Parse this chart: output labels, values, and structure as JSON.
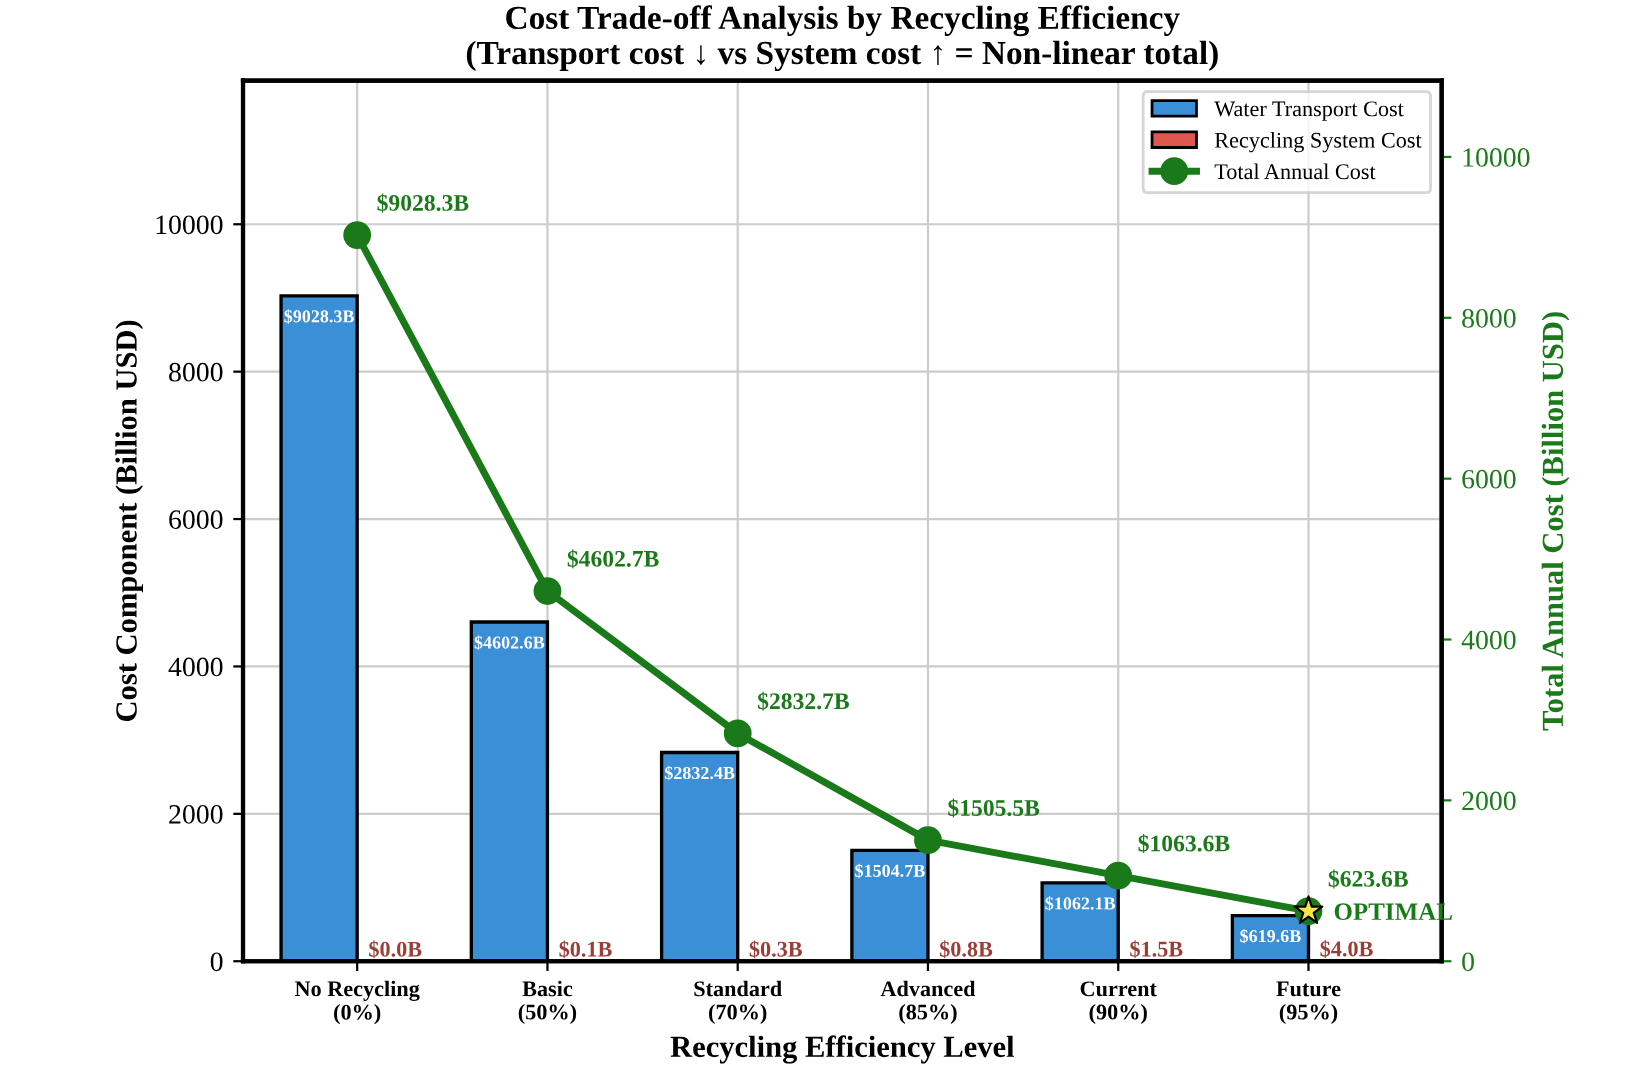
{
  "chart_data": {
    "type": "bar",
    "title": "Cost Trade-off Analysis by Recycling Efficiency\n(Transport cost ↓ vs System cost ↑ = Non-linear total)",
    "xlabel": "Recycling Efficiency Level",
    "ylabel": "Cost Component (Billion USD)",
    "y2label": "Total Annual Cost (Billion USD)",
    "categories": [
      "No Recycling\n(0%)",
      "Basic\n(50%)",
      "Standard\n(70%)",
      "Advanced\n(85%)",
      "Current\n(90%)",
      "Future\n(95%)"
    ],
    "series": [
      {
        "name": "Water Transport Cost",
        "color": "#3a8fd6",
        "values": [
          9028.3,
          4602.6,
          2832.4,
          1504.7,
          1062.1,
          619.6
        ],
        "value_labels": [
          "$9028.3B",
          "$4602.6B",
          "$2832.4B",
          "$1504.7B",
          "$1062.1B",
          "$619.6B"
        ]
      },
      {
        "name": "Recycling System Cost",
        "color": "#e0574f",
        "values": [
          0.0,
          0.1,
          0.3,
          0.8,
          1.5,
          4.0
        ],
        "value_labels": [
          "$0.0B",
          "$0.1B",
          "$0.3B",
          "$0.8B",
          "$1.5B",
          "$4.0B"
        ]
      },
      {
        "name": "Total Annual Cost",
        "type": "line",
        "axis": "y2",
        "color": "#1a7a1a",
        "marker": "circle",
        "values": [
          9028.3,
          4602.7,
          2832.7,
          1505.5,
          1063.6,
          623.6
        ],
        "value_labels": [
          "$9028.3B",
          "$4602.7B",
          "$2832.7B",
          "$1505.5B",
          "$1063.6B",
          "$623.6B"
        ]
      },
      {
        "type": "scatter",
        "axis": "y2",
        "color": "#f5e642",
        "marker": "star",
        "values": [
          null,
          null,
          null,
          null,
          null,
          623.6
        ]
      }
    ],
    "annotations": [
      {
        "text": "OPTIMAL",
        "x": "Future\n(95%)",
        "y": 623.6
      }
    ],
    "ylim": [
      0,
      11950
    ],
    "yticks": [
      0,
      2000,
      4000,
      6000,
      8000,
      10000
    ],
    "y2lim": [
      0,
      10950
    ],
    "y2ticks": [
      0,
      2000,
      4000,
      6000,
      8000,
      10000
    ],
    "grid": true,
    "legend": "top right"
  }
}
